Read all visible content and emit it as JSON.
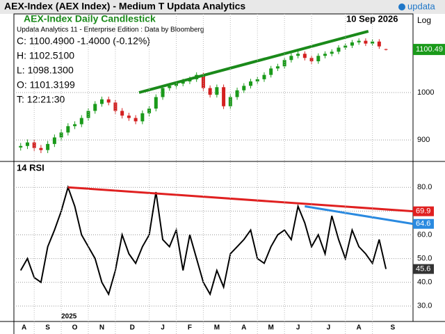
{
  "header": {
    "title": "AEX-Index (AEX Index) - Medium T  Updata Analytics",
    "logo": "updata"
  },
  "chart_data": [
    {
      "type": "candlestick",
      "title": "AEX-Index Daily Candlestick",
      "date": "10 Sep 2026",
      "subtitle": "Updata Analytics 11 - Enterprise Edition : Data by Bloomberg",
      "info": [
        "C: 1100.4900  -1.4000 (-0.12%)",
        "H: 1102.5100",
        "L: 1098.1300",
        "O: 1101.3199",
        "T: 12:21:30"
      ],
      "scale_label": "Log",
      "log_scale": true,
      "open": [
        885,
        888,
        895,
        884,
        880,
        892,
        905,
        915,
        928,
        932,
        945,
        960,
        975,
        985,
        978,
        960,
        950,
        945,
        938,
        955,
        965,
        990,
        1010,
        1015,
        1020,
        1025,
        1030,
        1040,
        1010,
        995,
        1012,
        970,
        990,
        1005,
        1015,
        1025,
        1030,
        1040,
        1055,
        1060,
        1075,
        1085,
        1090,
        1080,
        1072,
        1085,
        1090,
        1095,
        1105,
        1110,
        1118,
        1122,
        1115,
        1120,
        1101.3199
      ],
      "high": [
        894,
        901,
        900,
        890,
        898,
        911,
        921,
        934,
        938,
        951,
        966,
        981,
        991,
        991,
        984,
        966,
        956,
        951,
        961,
        971,
        996,
        1016,
        1021,
        1026,
        1031,
        1036,
        1046,
        1046,
        1016,
        1018,
        1018,
        996,
        1011,
        1021,
        1031,
        1036,
        1046,
        1061,
        1066,
        1081,
        1091,
        1096,
        1096,
        1086,
        1091,
        1096,
        1101,
        1111,
        1116,
        1124,
        1128,
        1128,
        1126,
        1126,
        1102.51
      ],
      "low": [
        879,
        882,
        878,
        874,
        874,
        886,
        899,
        909,
        922,
        926,
        939,
        954,
        969,
        972,
        954,
        944,
        939,
        932,
        932,
        949,
        959,
        984,
        1004,
        1009,
        1014,
        1019,
        1024,
        1004,
        989,
        989,
        964,
        964,
        984,
        999,
        1009,
        1019,
        1024,
        1034,
        1049,
        1054,
        1069,
        1079,
        1074,
        1066,
        1066,
        1079,
        1084,
        1089,
        1099,
        1104,
        1112,
        1109,
        1109,
        1102,
        1098.13
      ],
      "close": [
        888,
        895,
        884,
        880,
        892,
        905,
        915,
        928,
        932,
        945,
        960,
        975,
        985,
        978,
        960,
        950,
        945,
        938,
        955,
        965,
        990,
        1010,
        1015,
        1020,
        1025,
        1030,
        1040,
        1010,
        995,
        1012,
        970,
        990,
        1005,
        1015,
        1025,
        1030,
        1040,
        1055,
        1060,
        1075,
        1085,
        1090,
        1080,
        1072,
        1085,
        1090,
        1095,
        1105,
        1110,
        1118,
        1122,
        1115,
        1120,
        1108,
        1100.49
      ],
      "up_color": "#1a9a1a",
      "down_color": "#d42020",
      "trendline": {
        "color": "#1a8a1a",
        "points": [
          [
            17.5,
            1000
          ],
          [
            51.4,
            1146
          ]
        ]
      },
      "xlim": [
        -1,
        58
      ],
      "ylim": [
        858,
        1191
      ],
      "yticks": [
        900,
        1000
      ],
      "grid": true
    },
    {
      "type": "line",
      "title": "14 RSI",
      "annotation": "2025",
      "series": [
        {
          "name": "RSI",
          "color": "#000000",
          "values": [
            45,
            50,
            42,
            40,
            55,
            62,
            70,
            80,
            72,
            60,
            55,
            50,
            40,
            35,
            45,
            60,
            52,
            48,
            55,
            60,
            78,
            58,
            55,
            62,
            45,
            60,
            50,
            40,
            35,
            45,
            38,
            52,
            55,
            58,
            62,
            50,
            48,
            55,
            60,
            62,
            58,
            72,
            65,
            55,
            60,
            52,
            68,
            58,
            50,
            62,
            55,
            52,
            48,
            58,
            45.6
          ]
        }
      ],
      "trendlines": [
        {
          "color": "#e02020",
          "points": [
            [
              7,
              80
            ],
            [
              58,
              69.9
            ]
          ]
        },
        {
          "color": "#2a8ae0",
          "points": [
            [
              42,
              72
            ],
            [
              58,
              64.6
            ]
          ]
        }
      ],
      "xlim": [
        -1,
        58
      ],
      "ylim": [
        23.5,
        90.9
      ],
      "yticks": [
        {
          "value": 80,
          "label": "80.0"
        },
        {
          "value": 70,
          "label": "70.0"
        },
        {
          "value": 60,
          "label": "60.0"
        },
        {
          "value": 50,
          "label": "50.0"
        },
        {
          "value": 40,
          "label": "40.0"
        },
        {
          "value": 30,
          "label": "30.0"
        }
      ],
      "xticks": [
        {
          "value": -1,
          "label": "A"
        },
        {
          "value": 2,
          "label": "S"
        },
        {
          "value": 6,
          "label": "O"
        },
        {
          "value": 10,
          "label": "N"
        },
        {
          "value": 14,
          "label": "D"
        },
        {
          "value": 19,
          "label": "J"
        },
        {
          "value": 23,
          "label": "F"
        },
        {
          "value": 27,
          "label": "M"
        },
        {
          "value": 31,
          "label": "A"
        },
        {
          "value": 35,
          "label": "M"
        },
        {
          "value": 39,
          "label": "J"
        },
        {
          "value": 43,
          "label": "J"
        },
        {
          "value": 48,
          "label": "A"
        },
        {
          "value": 52,
          "label": "S"
        }
      ],
      "grid": true
    }
  ]
}
